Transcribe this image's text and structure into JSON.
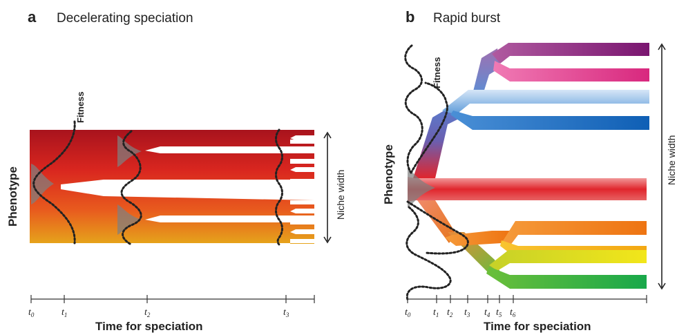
{
  "panel_a": {
    "letter": "a",
    "title": "Decelerating speciation",
    "y_label": "Phenotype",
    "x_label": "Time for speciation",
    "fitness_label": "Fitness",
    "niche_label": "Niche width",
    "ticks": [
      {
        "base": "t",
        "sub": "0"
      },
      {
        "base": "t",
        "sub": "1"
      },
      {
        "base": "t",
        "sub": "2"
      },
      {
        "base": "t",
        "sub": "3"
      }
    ]
  },
  "panel_b": {
    "letter": "b",
    "title": "Rapid burst",
    "y_label": "Phenotype",
    "x_label": "Time for speciation",
    "fitness_label": "Fitness",
    "niche_label": "Niche width",
    "ticks": [
      {
        "base": "t",
        "sub": "0"
      },
      {
        "base": "t",
        "sub": "1"
      },
      {
        "base": "t",
        "sub": "2"
      },
      {
        "base": "t",
        "sub": "3"
      },
      {
        "base": "t",
        "sub": "4"
      },
      {
        "base": "t",
        "sub": "5"
      },
      {
        "base": "t",
        "sub": "6"
      }
    ]
  },
  "colors": {
    "red_dark": "#b0141b",
    "red": "#e23a2c",
    "orange": "#f07a1c",
    "yellow": "#e8c21a",
    "green": "#2aa84a",
    "blue": "#1b6fc2",
    "purple": "#8c1c7a",
    "magenta": "#e0328a"
  }
}
